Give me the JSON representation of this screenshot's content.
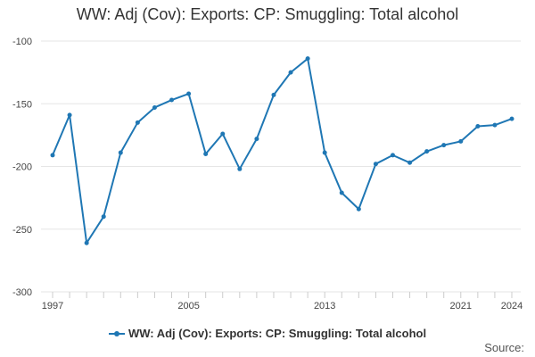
{
  "chart_data": {
    "type": "line",
    "title": "WW: Adj (Cov): Exports: CP: Smuggling: Total alcohol",
    "xlabel": "",
    "ylabel": "",
    "x": [
      1997,
      1998,
      1999,
      2000,
      2001,
      2002,
      2003,
      2004,
      2005,
      2006,
      2007,
      2008,
      2009,
      2010,
      2011,
      2012,
      2013,
      2014,
      2015,
      2016,
      2017,
      2018,
      2019,
      2020,
      2021,
      2022,
      2023,
      2024
    ],
    "series": [
      {
        "name": "WW: Adj (Cov): Exports: CP: Smuggling: Total alcohol",
        "color": "#1f77b4",
        "values": [
          -191,
          -159,
          -261,
          -240,
          -189,
          -165,
          -153,
          -147,
          -142,
          -190,
          -174,
          -202,
          -178,
          -143,
          -125,
          -114,
          -189,
          -221,
          -234,
          -198,
          -191,
          -197,
          -188,
          -183,
          -180,
          -168,
          -167,
          -162
        ]
      }
    ],
    "ylim": [
      -300,
      -100
    ],
    "yticks": [
      -100,
      -150,
      -200,
      -250,
      -300
    ],
    "xtick_labels": [
      1997,
      2005,
      2013,
      2021,
      2024
    ],
    "grid": true,
    "legend_position": "bottom"
  },
  "footer": {
    "source_label": "Source:"
  }
}
